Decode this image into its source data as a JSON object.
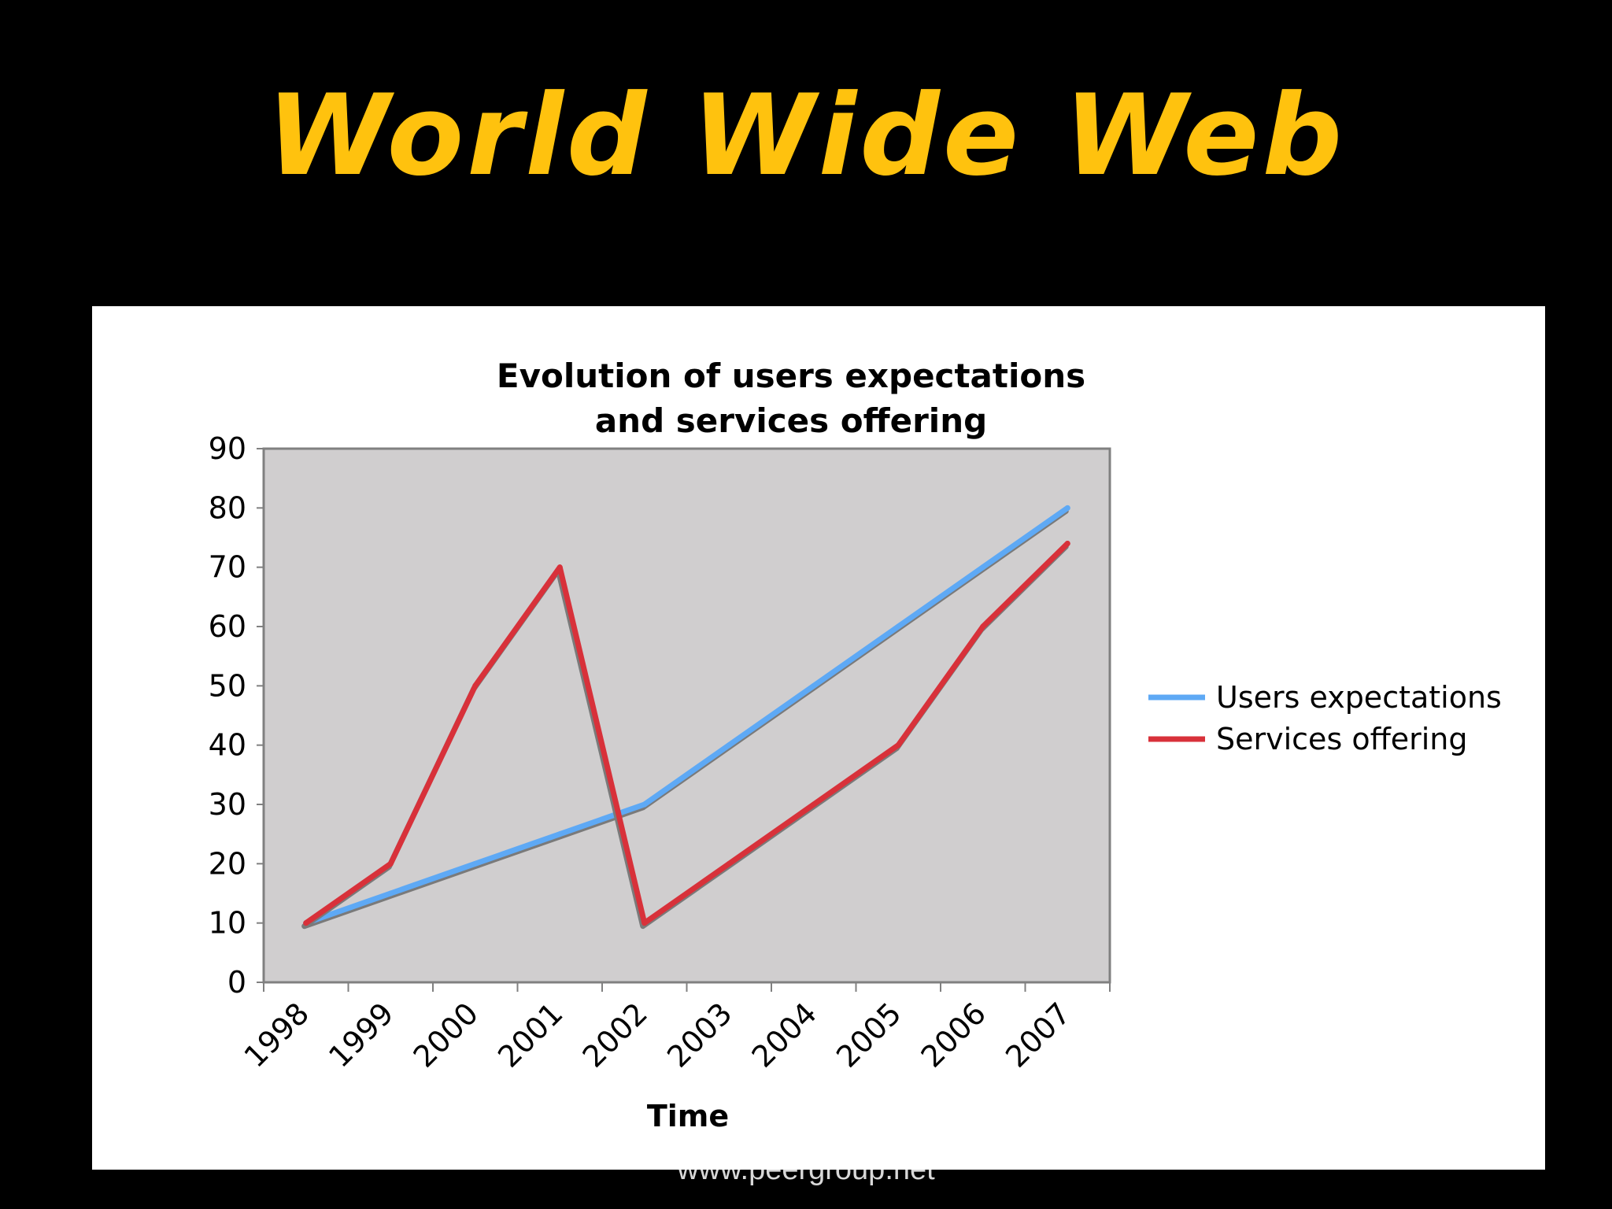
{
  "slide": {
    "title": "World Wide Web",
    "footer": "www.peergroup.net"
  },
  "colors": {
    "background": "#000000",
    "title": "#FFC20E",
    "panel": "#FFFFFF",
    "plot_area": "#D0CECF",
    "users_series": "#5EA9F5",
    "services_series": "#D8313A"
  },
  "chart_data": {
    "type": "line",
    "title_lines": [
      "Evolution of users expectations",
      "and services offering"
    ],
    "xlabel": "Time",
    "ylabel": "",
    "categories": [
      "1998",
      "1999",
      "2000",
      "2001",
      "2002",
      "2003",
      "2004",
      "2005",
      "2006",
      "2007"
    ],
    "ylim": [
      0,
      90
    ],
    "yticks": [
      0,
      10,
      20,
      30,
      40,
      50,
      60,
      70,
      80,
      90
    ],
    "grid": false,
    "legend_position": "right",
    "series": [
      {
        "name": "Users expectations",
        "color": "#5EA9F5",
        "values": [
          10,
          15,
          20,
          25,
          30,
          40,
          50,
          60,
          70,
          80
        ]
      },
      {
        "name": "Services offering",
        "color": "#D8313A",
        "values": [
          10,
          20,
          50,
          70,
          10,
          20,
          30,
          40,
          60,
          74
        ]
      }
    ]
  }
}
